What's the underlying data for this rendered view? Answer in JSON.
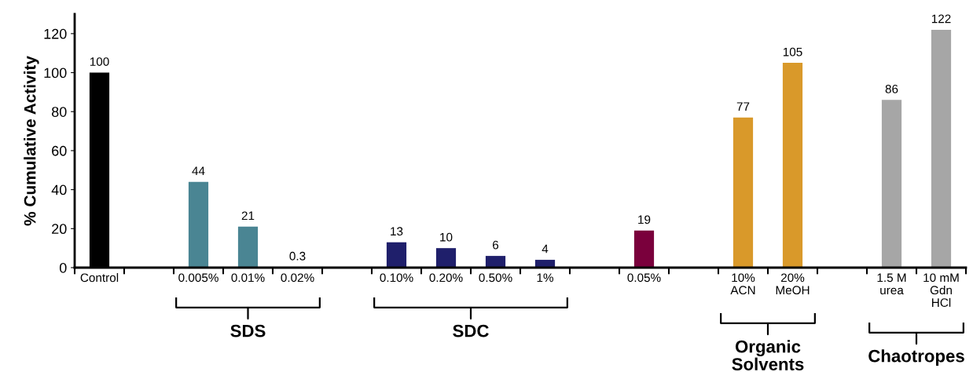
{
  "chart_data": {
    "type": "bar",
    "ylabel": "% Cumulative Activity",
    "categories": [
      "Control",
      null,
      "0.005%",
      "0.01%",
      "0.02%",
      null,
      "0.10%",
      "0.20%",
      "0.50%",
      "1%",
      null,
      "0.05%",
      null,
      "10%\nACN",
      "20%\nMeOH",
      null,
      "1.5 M\nurea",
      "10 mM\nGdn\nHCl"
    ],
    "values": [
      100,
      null,
      44,
      21,
      0.3,
      null,
      13,
      10,
      6,
      4,
      null,
      19,
      null,
      77,
      105,
      null,
      86,
      122
    ],
    "colors": [
      "#000000",
      null,
      "#4a8593",
      "#4a8593",
      "#4a8593",
      null,
      "#1f1f6b",
      "#1f1f6b",
      "#1f1f6b",
      "#1f1f6b",
      null,
      "#7a003c",
      null,
      "#d9992a",
      "#d9992a",
      null,
      "#a6a6a6",
      "#a6a6a6"
    ],
    "ylim": [
      0,
      130
    ],
    "yticks": [
      0,
      20,
      40,
      60,
      80,
      100,
      120
    ],
    "data_labels": true,
    "grid": false,
    "legend": false,
    "annotations": [
      "SDS",
      "SDC",
      "Organic\nSolvents",
      "Chaotropes"
    ]
  }
}
